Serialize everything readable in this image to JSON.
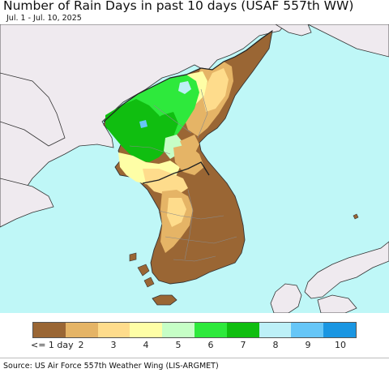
{
  "header": {
    "title": "Number of Rain Days in past 10 days (USAF 557th WW)",
    "subtitle": "Jul. 1 - Jul. 10, 2025"
  },
  "map": {
    "region": "Korean Peninsula",
    "colors": {
      "sea": "#bff7f7",
      "land_outside": "#efeaef",
      "border": "#333333",
      "province_line": "#8a8a8a"
    }
  },
  "legend": {
    "labels": [
      "<= 1 day",
      "2",
      "3",
      "4",
      "5",
      "6",
      "7",
      "8",
      "9",
      "10"
    ],
    "colors": [
      "#9a6634",
      "#e5b466",
      "#fedc8c",
      "#fefea6",
      "#c6fec6",
      "#2ee93c",
      "#10be10",
      "#bdf0f7",
      "#66c6f7",
      "#1a96e2"
    ]
  },
  "footer": {
    "source": "Source: US Air Force 557th Weather Wing (LIS-ARGMET)"
  }
}
